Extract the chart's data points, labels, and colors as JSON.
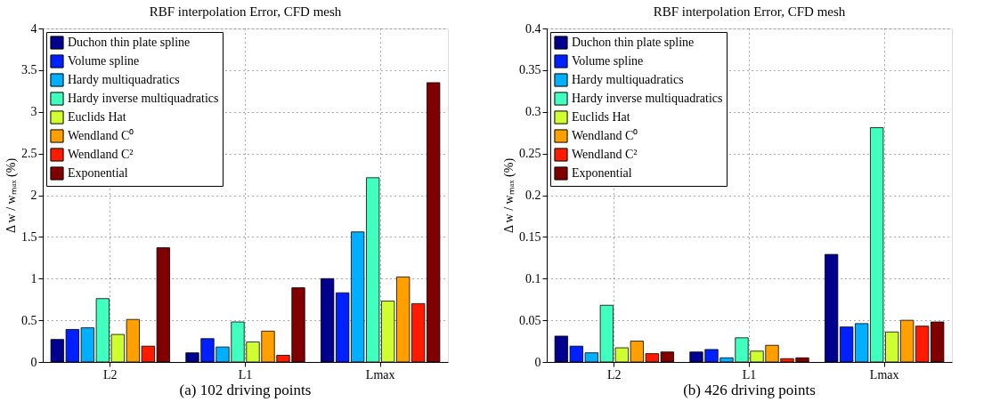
{
  "chart_data": [
    {
      "type": "bar",
      "title": "RBF interpolation Error, CFD mesh",
      "ylabel": "Δ w / wₘₐₓ (%)",
      "categories": [
        "L2",
        "L1",
        "Lmax"
      ],
      "ylim": [
        0,
        4
      ],
      "yticks": [
        0,
        0.5,
        1,
        1.5,
        2,
        2.5,
        3,
        3.5,
        4
      ],
      "grid": true,
      "legend": "top left",
      "annotations": [
        "(a) 102 driving points"
      ],
      "series": [
        {
          "name": "Duchon thin plate spline",
          "color": "#00008f",
          "values": [
            0.27,
            0.11,
            1.0
          ]
        },
        {
          "name": "Volume spline",
          "color": "#0020ff",
          "values": [
            0.39,
            0.28,
            0.83
          ]
        },
        {
          "name": "Hardy multiquadratics",
          "color": "#00afff",
          "values": [
            0.41,
            0.18,
            1.56
          ]
        },
        {
          "name": "Hardy inverse multiquadratics",
          "color": "#40ffbf",
          "values": [
            0.76,
            0.48,
            2.21
          ]
        },
        {
          "name": "Euclids Hat",
          "color": "#cfff30",
          "values": [
            0.33,
            0.24,
            0.73
          ]
        },
        {
          "name": "Wendland C⁰",
          "color": "#ffa000",
          "values": [
            0.51,
            0.37,
            1.02
          ]
        },
        {
          "name": "Wendland C²",
          "color": "#ff1a00",
          "values": [
            0.19,
            0.08,
            0.7
          ]
        },
        {
          "name": "Exponential",
          "color": "#800000",
          "values": [
            1.37,
            0.89,
            3.35
          ]
        }
      ]
    },
    {
      "type": "bar",
      "title": "RBF interpolation Error, CFD mesh",
      "ylabel": "Δ w / wₘₐₓ (%)",
      "categories": [
        "L2",
        "L1",
        "Lmax"
      ],
      "ylim": [
        0,
        0.4
      ],
      "yticks": [
        0,
        0.05,
        0.1,
        0.15,
        0.2,
        0.25,
        0.3,
        0.35,
        0.4
      ],
      "grid": true,
      "legend": "top left",
      "annotations": [
        "(b) 426 driving points"
      ],
      "series": [
        {
          "name": "Duchon thin plate spline",
          "color": "#00008f",
          "values": [
            0.031,
            0.012,
            0.129
          ]
        },
        {
          "name": "Volume spline",
          "color": "#0020ff",
          "values": [
            0.019,
            0.015,
            0.042
          ]
        },
        {
          "name": "Hardy multiquadratics",
          "color": "#00afff",
          "values": [
            0.011,
            0.005,
            0.046
          ]
        },
        {
          "name": "Hardy inverse multiquadratics",
          "color": "#40ffbf",
          "values": [
            0.068,
            0.029,
            0.281
          ]
        },
        {
          "name": "Euclids Hat",
          "color": "#cfff30",
          "values": [
            0.017,
            0.013,
            0.036
          ]
        },
        {
          "name": "Wendland C⁰",
          "color": "#ffa000",
          "values": [
            0.025,
            0.02,
            0.05
          ]
        },
        {
          "name": "Wendland C²",
          "color": "#ff1a00",
          "values": [
            0.01,
            0.004,
            0.043
          ]
        },
        {
          "name": "Exponential",
          "color": "#800000",
          "values": [
            0.012,
            0.005,
            0.048
          ]
        }
      ]
    }
  ]
}
